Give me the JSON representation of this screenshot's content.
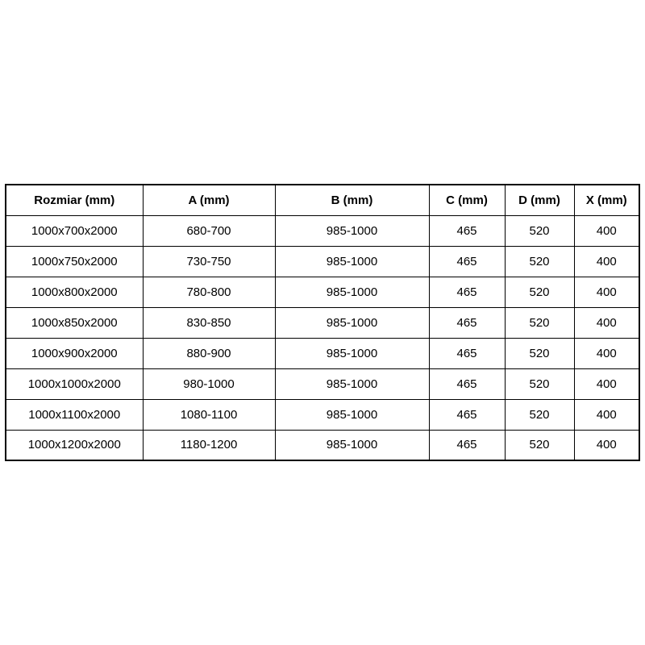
{
  "colors": {
    "background": "#ffffff",
    "border": "#000000",
    "text": "#000000"
  },
  "chart_data": {
    "type": "table",
    "columns": [
      "Rozmiar (mm)",
      "A (mm)",
      "B (mm)",
      "C (mm)",
      "D (mm)",
      "X (mm)"
    ],
    "rows": [
      [
        "1000x700x2000",
        "680-700",
        "985-1000",
        "465",
        "520",
        "400"
      ],
      [
        "1000x750x2000",
        "730-750",
        "985-1000",
        "465",
        "520",
        "400"
      ],
      [
        "1000x800x2000",
        "780-800",
        "985-1000",
        "465",
        "520",
        "400"
      ],
      [
        "1000x850x2000",
        "830-850",
        "985-1000",
        "465",
        "520",
        "400"
      ],
      [
        "1000x900x2000",
        "880-900",
        "985-1000",
        "465",
        "520",
        "400"
      ],
      [
        "1000x1000x2000",
        "980-1000",
        "985-1000",
        "465",
        "520",
        "400"
      ],
      [
        "1000x1100x2000",
        "1080-1100",
        "985-1000",
        "465",
        "520",
        "400"
      ],
      [
        "1000x1200x2000",
        "1180-1200",
        "985-1000",
        "465",
        "520",
        "400"
      ]
    ]
  }
}
